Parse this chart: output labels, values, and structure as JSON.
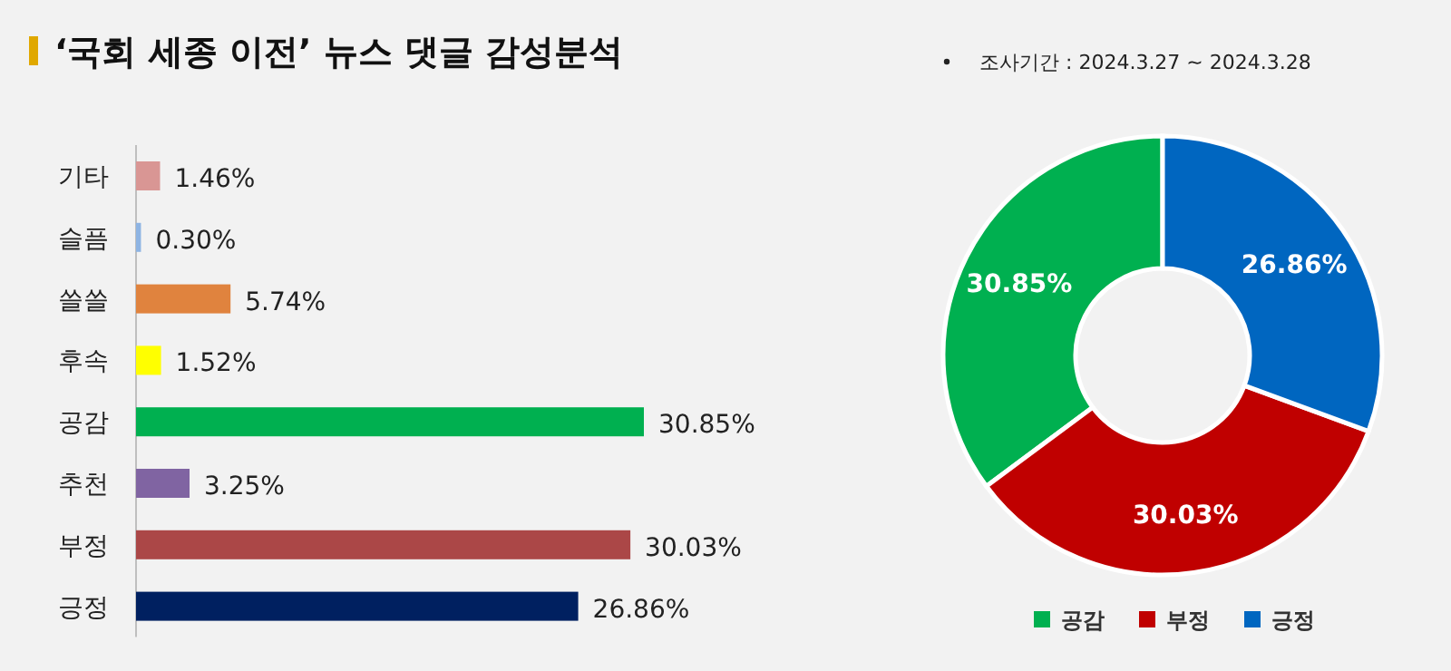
{
  "chart_data": [
    {
      "type": "bar",
      "orientation": "horizontal",
      "title": "‘국회 세종 이전’ 뉴스 댓글 감성분석",
      "categories": [
        "기타",
        "슬픔",
        "쓸쓸",
        "후속",
        "공감",
        "추천",
        "부정",
        "긍정"
      ],
      "values": [
        1.46,
        0.3,
        5.74,
        1.52,
        30.85,
        3.25,
        30.03,
        26.86
      ],
      "colors": [
        "#d99694",
        "#8eb4e3",
        "#e0833e",
        "#ffff00",
        "#00b050",
        "#8064a2",
        "#ab4747",
        "#002060"
      ],
      "value_labels": [
        "1.46%",
        "0.30%",
        "5.74%",
        "1.52%",
        "30.85%",
        "3.25%",
        "30.03%",
        "26.86%"
      ]
    },
    {
      "type": "donut",
      "annotations": [
        "조사기간 : 2024.3.27 ~ 2024.3.28"
      ],
      "categories": [
        "공감",
        "부정",
        "긍정"
      ],
      "values": [
        30.85,
        30.03,
        26.86
      ],
      "colors": [
        "#00b050",
        "#c00000",
        "#0066c0"
      ],
      "value_labels": [
        "30.85%",
        "30.03%",
        "26.86%"
      ],
      "legend": "bottom"
    }
  ]
}
